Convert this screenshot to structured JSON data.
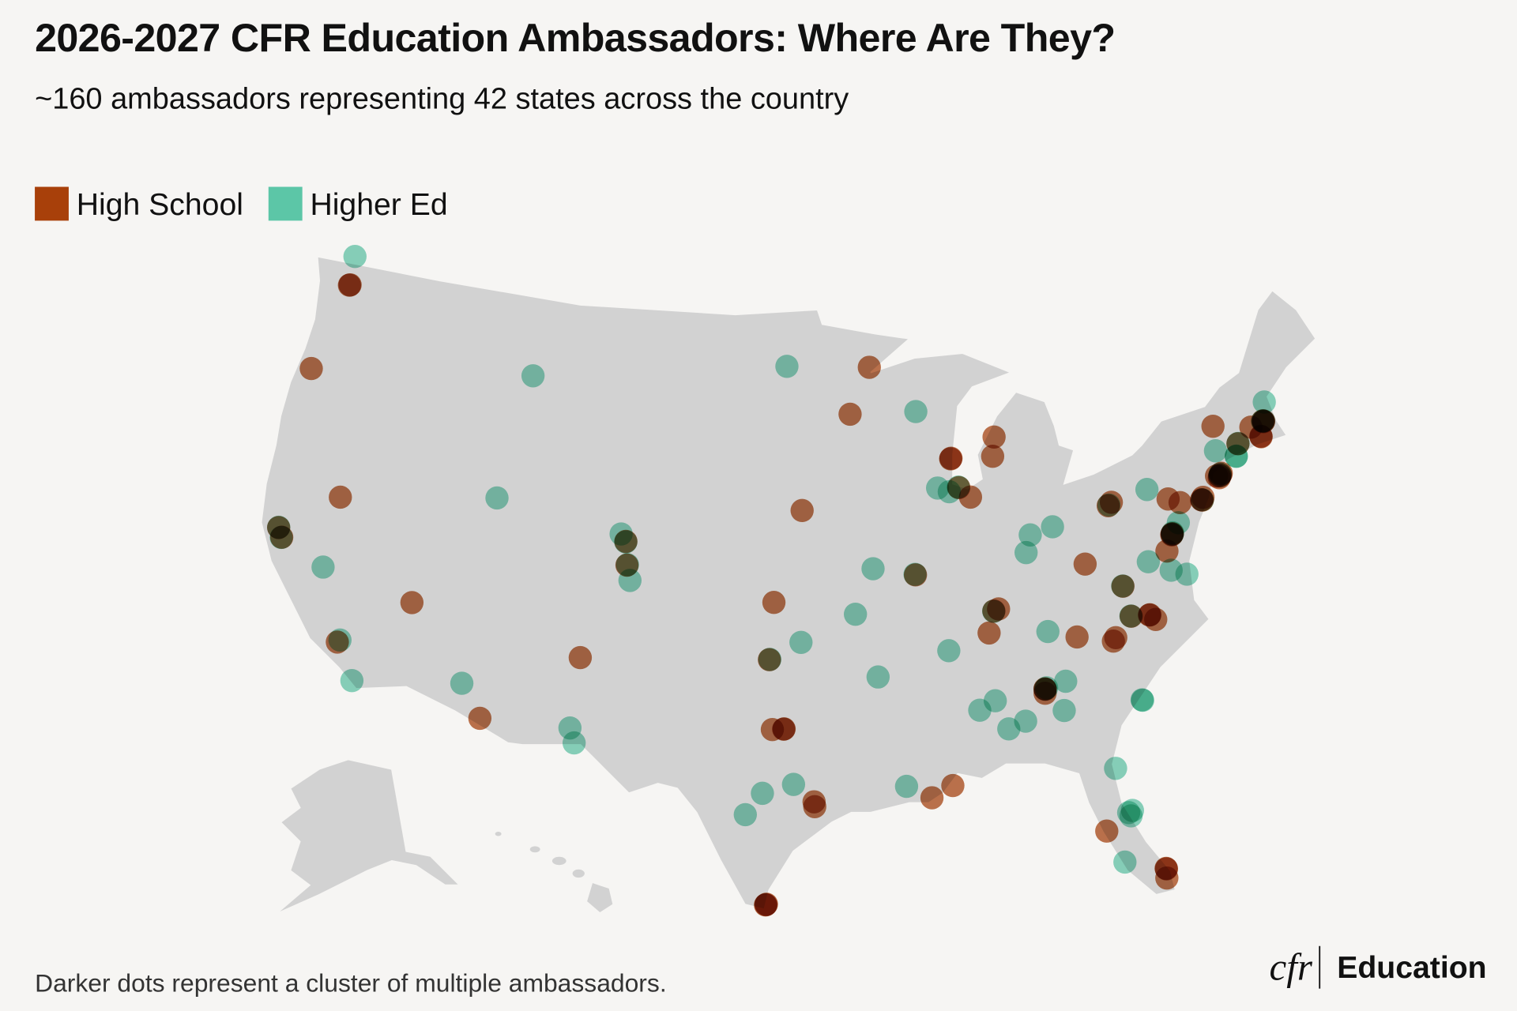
{
  "chart_data": {
    "type": "map",
    "title": "2026-2027 CFR Education Ambassadors: Where Are They?",
    "subtitle": "~160 ambassadors representing 42 states across the country",
    "note": "Darker dots represent a cluster of multiple ambassadors.",
    "legend": "top-left",
    "series": [
      {
        "name": "High School",
        "color": "#a8400a",
        "points": [
          [
            -122.33,
            47.6
          ],
          [
            -122.3,
            47.62
          ],
          [
            -123.09,
            44.05
          ],
          [
            -119.81,
            39.53
          ],
          [
            -122.42,
            37.77
          ],
          [
            -122.14,
            37.44
          ],
          [
            -115.14,
            36.17
          ],
          [
            -118.24,
            34.05
          ],
          [
            -110.97,
            32.22
          ],
          [
            -106.65,
            35.08
          ],
          [
            -104.99,
            39.74
          ],
          [
            -104.82,
            38.83
          ],
          [
            -92.1,
            46.79
          ],
          [
            -93.27,
            44.98
          ],
          [
            -87.91,
            43.04
          ],
          [
            -87.93,
            43.02
          ],
          [
            -87.63,
            41.88
          ],
          [
            -87.06,
            41.47
          ],
          [
            -85.48,
            43.7
          ],
          [
            -85.67,
            42.96
          ],
          [
            -95.93,
            41.26
          ],
          [
            -90.2,
            38.63
          ],
          [
            -97.34,
            37.69
          ],
          [
            -97.52,
            35.47
          ],
          [
            -96.8,
            32.78
          ],
          [
            -96.78,
            32.79
          ],
          [
            -97.33,
            32.76
          ],
          [
            -95.37,
            29.76
          ],
          [
            -95.4,
            29.95
          ],
          [
            -97.5,
            25.9
          ],
          [
            -97.48,
            25.92
          ],
          [
            -97.52,
            25.89
          ],
          [
            -90.07,
            29.95
          ],
          [
            -89.09,
            30.37
          ],
          [
            -84.39,
            33.75
          ],
          [
            -84.4,
            33.77
          ],
          [
            -84.42,
            33.6
          ],
          [
            -82.55,
            35.6
          ],
          [
            -80.84,
            35.23
          ],
          [
            -80.7,
            35.35
          ],
          [
            -79.79,
            36.07
          ],
          [
            -78.9,
            35.99
          ],
          [
            -78.88,
            36.0
          ],
          [
            -78.64,
            35.78
          ],
          [
            -86.78,
            36.16
          ],
          [
            -86.44,
            36.99
          ],
          [
            -86.2,
            37.05
          ],
          [
            -81.63,
            38.35
          ],
          [
            -79.99,
            40.44
          ],
          [
            -79.8,
            40.55
          ],
          [
            -76.88,
            40.27
          ],
          [
            -76.31,
            40.04
          ],
          [
            -75.17,
            39.95
          ],
          [
            -75.2,
            39.97
          ],
          [
            -75.1,
            40.05
          ],
          [
            -74.01,
            40.71
          ],
          [
            -73.95,
            40.75
          ],
          [
            -73.9,
            40.8
          ],
          [
            -74.05,
            40.65
          ],
          [
            -74.17,
            40.74
          ],
          [
            -77.04,
            38.9
          ],
          [
            -77.02,
            38.92
          ],
          [
            -77.06,
            38.88
          ],
          [
            -77.46,
            38.3
          ],
          [
            -79.94,
            37.27
          ],
          [
            -73.75,
            42.65
          ],
          [
            -72.68,
            41.76
          ],
          [
            -71.8,
            42.26
          ],
          [
            -71.06,
            42.36
          ],
          [
            -71.1,
            42.38
          ],
          [
            -71.08,
            42.34
          ],
          [
            -71.41,
            41.82
          ],
          [
            -71.4,
            41.8
          ],
          [
            -82.46,
            27.95
          ],
          [
            -80.14,
            26.12
          ],
          [
            -80.15,
            26.14
          ],
          [
            -80.19,
            25.76
          ]
        ]
      },
      {
        "name": "Higher Ed",
        "color": "#5cc6a7",
        "points": [
          [
            -122.48,
            48.75
          ],
          [
            -111.04,
            45.68
          ],
          [
            -96.79,
            46.88
          ],
          [
            -111.89,
            40.76
          ],
          [
            -122.42,
            37.78
          ],
          [
            -122.16,
            37.43
          ],
          [
            -119.78,
            36.74
          ],
          [
            -118.14,
            34.15
          ],
          [
            -117.16,
            32.72
          ],
          [
            -112.07,
            33.45
          ],
          [
            -106.76,
            32.32
          ],
          [
            -106.49,
            31.76
          ],
          [
            -105.27,
            40.01
          ],
          [
            -104.99,
            39.72
          ],
          [
            -104.8,
            38.85
          ],
          [
            -104.6,
            38.25
          ],
          [
            -89.63,
            44.96
          ],
          [
            -88.75,
            41.93
          ],
          [
            -88.15,
            41.75
          ],
          [
            -87.65,
            41.9
          ],
          [
            -92.33,
            38.95
          ],
          [
            -90.22,
            38.65
          ],
          [
            -93.29,
            37.21
          ],
          [
            -95.99,
            36.15
          ],
          [
            -97.5,
            35.48
          ],
          [
            -92.29,
            34.75
          ],
          [
            -88.81,
            35.61
          ],
          [
            -96.33,
            30.63
          ],
          [
            -97.74,
            30.27
          ],
          [
            -98.49,
            29.42
          ],
          [
            -91.19,
            30.45
          ],
          [
            -87.57,
            33.21
          ],
          [
            -86.8,
            33.52
          ],
          [
            -86.3,
            32.38
          ],
          [
            -85.48,
            32.61
          ],
          [
            -84.39,
            33.76
          ],
          [
            -84.32,
            33.8
          ],
          [
            -83.38,
            33.96
          ],
          [
            -83.63,
            32.84
          ],
          [
            -83.92,
            35.96
          ],
          [
            -79.8,
            36.08
          ],
          [
            -79.93,
            32.78
          ],
          [
            -79.95,
            32.8
          ],
          [
            -86.45,
            36.98
          ],
          [
            -84.19,
            39.76
          ],
          [
            -84.51,
            39.1
          ],
          [
            -83.0,
            39.96
          ],
          [
            -79.95,
            40.46
          ],
          [
            -77.86,
            40.79
          ],
          [
            -75.16,
            39.96
          ],
          [
            -74.0,
            40.72
          ],
          [
            -73.96,
            40.78
          ],
          [
            -78.48,
            38.03
          ],
          [
            -77.03,
            38.9
          ],
          [
            -77.0,
            38.95
          ],
          [
            -76.61,
            39.29
          ],
          [
            -79.95,
            37.28
          ],
          [
            -77.44,
            37.54
          ],
          [
            -76.71,
            37.27
          ],
          [
            -72.67,
            41.77
          ],
          [
            -72.92,
            41.31
          ],
          [
            -72.93,
            41.3
          ],
          [
            -73.92,
            41.7
          ],
          [
            -71.06,
            42.37
          ],
          [
            -71.12,
            42.37
          ],
          [
            -70.76,
            43.07
          ],
          [
            -81.66,
            30.33
          ],
          [
            -81.38,
            28.54
          ],
          [
            -81.2,
            28.6
          ],
          [
            -81.3,
            28.4
          ],
          [
            -81.87,
            26.64
          ]
        ]
      }
    ]
  },
  "brand": {
    "mark": "cfr",
    "name": "Education"
  }
}
